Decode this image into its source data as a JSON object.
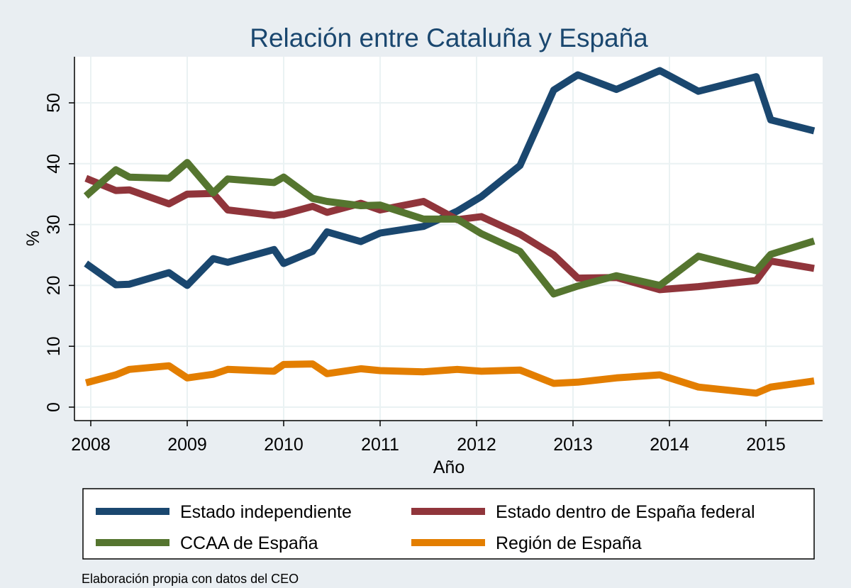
{
  "chart_data": {
    "type": "line",
    "title": "Relación entre Cataluña y España",
    "xlabel": "Año",
    "ylabel": "%",
    "xlim": [
      2008,
      2015.6
    ],
    "ylim": [
      -2.5,
      56
    ],
    "x_ticks": [
      "2008",
      "2009",
      "2010",
      "2011",
      "2012",
      "2013",
      "2014",
      "2015"
    ],
    "y_ticks": [
      "0",
      "10",
      "20",
      "30",
      "40",
      "50"
    ],
    "grid": true,
    "legend_position": "bottom",
    "series": [
      {
        "name": "Estado independiente",
        "color": "#1a476f",
        "points": [
          [
            2007.95,
            23.6
          ],
          [
            2008.26,
            20.1
          ],
          [
            2008.4,
            20.2
          ],
          [
            2008.81,
            22.1
          ],
          [
            2009.0,
            20.0
          ],
          [
            2009.27,
            24.4
          ],
          [
            2009.42,
            23.8
          ],
          [
            2009.9,
            25.9
          ],
          [
            2010.0,
            23.6
          ],
          [
            2010.3,
            25.6
          ],
          [
            2010.45,
            28.8
          ],
          [
            2010.8,
            27.2
          ],
          [
            2011.0,
            28.6
          ],
          [
            2011.45,
            29.7
          ],
          [
            2011.8,
            32.2
          ],
          [
            2012.05,
            34.6
          ],
          [
            2012.45,
            39.7
          ],
          [
            2012.8,
            52.1
          ],
          [
            2013.05,
            54.6
          ],
          [
            2013.45,
            52.2
          ],
          [
            2013.9,
            55.3
          ],
          [
            2014.3,
            51.9
          ],
          [
            2014.9,
            54.3
          ],
          [
            2015.05,
            47.2
          ],
          [
            2015.5,
            45.4
          ]
        ]
      },
      {
        "name": "Estado dentro de España federal",
        "color": "#90353b",
        "points": [
          [
            2007.95,
            37.6
          ],
          [
            2008.26,
            35.6
          ],
          [
            2008.4,
            35.7
          ],
          [
            2008.81,
            33.4
          ],
          [
            2009.0,
            35.0
          ],
          [
            2009.27,
            35.1
          ],
          [
            2009.42,
            32.4
          ],
          [
            2009.9,
            31.5
          ],
          [
            2010.0,
            31.7
          ],
          [
            2010.3,
            33.0
          ],
          [
            2010.45,
            32.0
          ],
          [
            2010.8,
            33.5
          ],
          [
            2011.0,
            32.4
          ],
          [
            2011.45,
            33.8
          ],
          [
            2011.8,
            30.8
          ],
          [
            2012.05,
            31.3
          ],
          [
            2012.45,
            28.4
          ],
          [
            2012.8,
            25.0
          ],
          [
            2013.05,
            21.2
          ],
          [
            2013.45,
            21.3
          ],
          [
            2013.9,
            19.3
          ],
          [
            2014.3,
            19.8
          ],
          [
            2014.9,
            20.8
          ],
          [
            2015.05,
            24.0
          ],
          [
            2015.5,
            22.8
          ]
        ]
      },
      {
        "name": "CCAA de España",
        "color": "#55752f",
        "points": [
          [
            2007.95,
            34.7
          ],
          [
            2008.26,
            39.0
          ],
          [
            2008.4,
            37.8
          ],
          [
            2008.81,
            37.6
          ],
          [
            2009.0,
            40.2
          ],
          [
            2009.27,
            35.2
          ],
          [
            2009.42,
            37.5
          ],
          [
            2009.9,
            36.9
          ],
          [
            2010.0,
            37.8
          ],
          [
            2010.3,
            34.3
          ],
          [
            2010.45,
            33.8
          ],
          [
            2010.8,
            33.1
          ],
          [
            2011.0,
            33.2
          ],
          [
            2011.45,
            30.9
          ],
          [
            2011.8,
            30.9
          ],
          [
            2012.05,
            28.5
          ],
          [
            2012.45,
            25.6
          ],
          [
            2012.8,
            18.6
          ],
          [
            2013.05,
            19.9
          ],
          [
            2013.45,
            21.6
          ],
          [
            2013.9,
            20.0
          ],
          [
            2014.3,
            24.8
          ],
          [
            2014.9,
            22.4
          ],
          [
            2015.05,
            25.1
          ],
          [
            2015.5,
            27.3
          ]
        ]
      },
      {
        "name": "Región de España",
        "color": "#e37e00",
        "points": [
          [
            2007.95,
            4.0
          ],
          [
            2008.26,
            5.3
          ],
          [
            2008.4,
            6.2
          ],
          [
            2008.81,
            6.8
          ],
          [
            2009.0,
            4.8
          ],
          [
            2009.27,
            5.4
          ],
          [
            2009.42,
            6.2
          ],
          [
            2009.9,
            5.9
          ],
          [
            2010.0,
            7.0
          ],
          [
            2010.3,
            7.1
          ],
          [
            2010.45,
            5.5
          ],
          [
            2010.8,
            6.3
          ],
          [
            2011.0,
            6.0
          ],
          [
            2011.45,
            5.8
          ],
          [
            2011.8,
            6.2
          ],
          [
            2012.05,
            5.9
          ],
          [
            2012.45,
            6.1
          ],
          [
            2012.8,
            3.9
          ],
          [
            2013.05,
            4.1
          ],
          [
            2013.45,
            4.8
          ],
          [
            2013.9,
            5.3
          ],
          [
            2014.3,
            3.3
          ],
          [
            2014.9,
            2.3
          ],
          [
            2015.05,
            3.3
          ],
          [
            2015.5,
            4.3
          ]
        ]
      }
    ]
  },
  "note": "Elaboración propia con datos del CEO",
  "colors": {
    "page_background": "#e9eef2",
    "plot_background": "#ffffff",
    "grid": "#eaf2f3",
    "title": "#1a476f",
    "text": "#000000"
  }
}
